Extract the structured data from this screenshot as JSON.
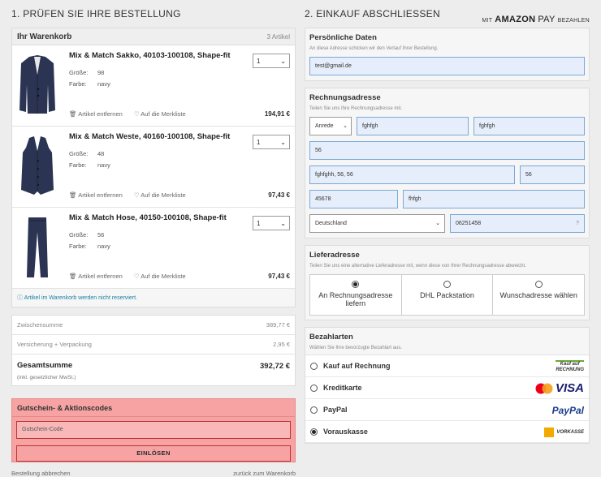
{
  "left": {
    "section_title": "1. PRÜFEN SIE IHRE BESTELLUNG",
    "cart_title": "Ihr Warenkorb",
    "cart_count": "3 Artikel",
    "items": [
      {
        "name": "Mix & Match Sakko, 40103-100108, Shape-fit",
        "size_label": "Größe:",
        "size": "98",
        "color_label": "Farbe:",
        "color": "navy",
        "qty": "1",
        "remove": "Artikel entfernen",
        "wishlist": "Auf die Merkliste",
        "price": "194,91 €"
      },
      {
        "name": "Mix & Match Weste, 40160-100108, Shape-fit",
        "size_label": "Größe:",
        "size": "48",
        "color_label": "Farbe:",
        "color": "navy",
        "qty": "1",
        "remove": "Artikel entfernen",
        "wishlist": "Auf die Merkliste",
        "price": "97,43 €"
      },
      {
        "name": "Mix & Match Hose, 40150-100108, Shape-fit",
        "size_label": "Größe:",
        "size": "56",
        "color_label": "Farbe:",
        "color": "navy",
        "qty": "1",
        "remove": "Artikel entfernen",
        "wishlist": "Auf die Merkliste",
        "price": "97,43 €"
      }
    ],
    "note": "Artikel im Warenkorb werden nicht reserviert.",
    "subtotal_label": "Zwischensumme",
    "subtotal": "389,77 €",
    "shipping_label": "Versicherung + Verpackung",
    "shipping": "2,95 €",
    "total_label": "Gesamtsumme",
    "total": "392,72 €",
    "vat_note": "(inkl. gesetzlicher MwSt.)",
    "voucher_title": "Gutschein- & Aktionscodes",
    "voucher_placeholder": "Gutschein-Code",
    "voucher_button": "EINLÖSEN",
    "cancel_link": "Bestellung abbrechen",
    "back_link": "zurück zum Warenkorb"
  },
  "right": {
    "section_title": "2. EINKAUF ABSCHLIESSEN",
    "amazon_prefix": "Mit",
    "amazon_brand": "amazon",
    "amazon_pay": "pay",
    "amazon_suffix": "bezahlen",
    "personal_title": "Persönliche Daten",
    "personal_sub": "An diese Adresse schicken wir den Verlauf Ihrer Bestellung.",
    "email": "test@gmail.de",
    "billing_title": "Rechnungsadresse",
    "billing_sub": "Teilen Sie uns Ihre Rechnungsadresse mit.",
    "salutation": "Anrede",
    "first_name": "fghfgh",
    "last_name": "fghfgh",
    "company": "56",
    "street": "fghfghh, 56, 56",
    "house_no": "56",
    "zip": "45678",
    "city": "fhfgh",
    "country": "Deutschland",
    "phone": "06251458",
    "phone_help": "?",
    "delivery_title": "Lieferadresse",
    "delivery_sub": "Teilen Sie uns eine alternative Lieferadresse mit, wenn diese von Ihrer Rechnungsadresse abweicht.",
    "delivery_options": [
      "An Rechnungsadresse liefern",
      "DHL Packstation",
      "Wunschadresse wählen"
    ],
    "payment_title": "Bezahlarten",
    "payment_sub": "Wählen Sie Ihre bevorzugte Bezahlart aus.",
    "payment_options": [
      "Kauf auf Rechnung",
      "Kreditkarte",
      "PayPal",
      "Vorauskasse"
    ],
    "logo_text": {
      "invoice_top": "Kauf auf",
      "invoice_bottom": "RECHNUNG",
      "visa": "VISA",
      "paypal": "PayPal",
      "prepay": "VORKASSE"
    }
  },
  "colors": {
    "voucher_bg": "#f7a3a3",
    "field_bg": "#e6eefb",
    "field_border": "#7aa9d9",
    "link": "#1a7fa3"
  }
}
